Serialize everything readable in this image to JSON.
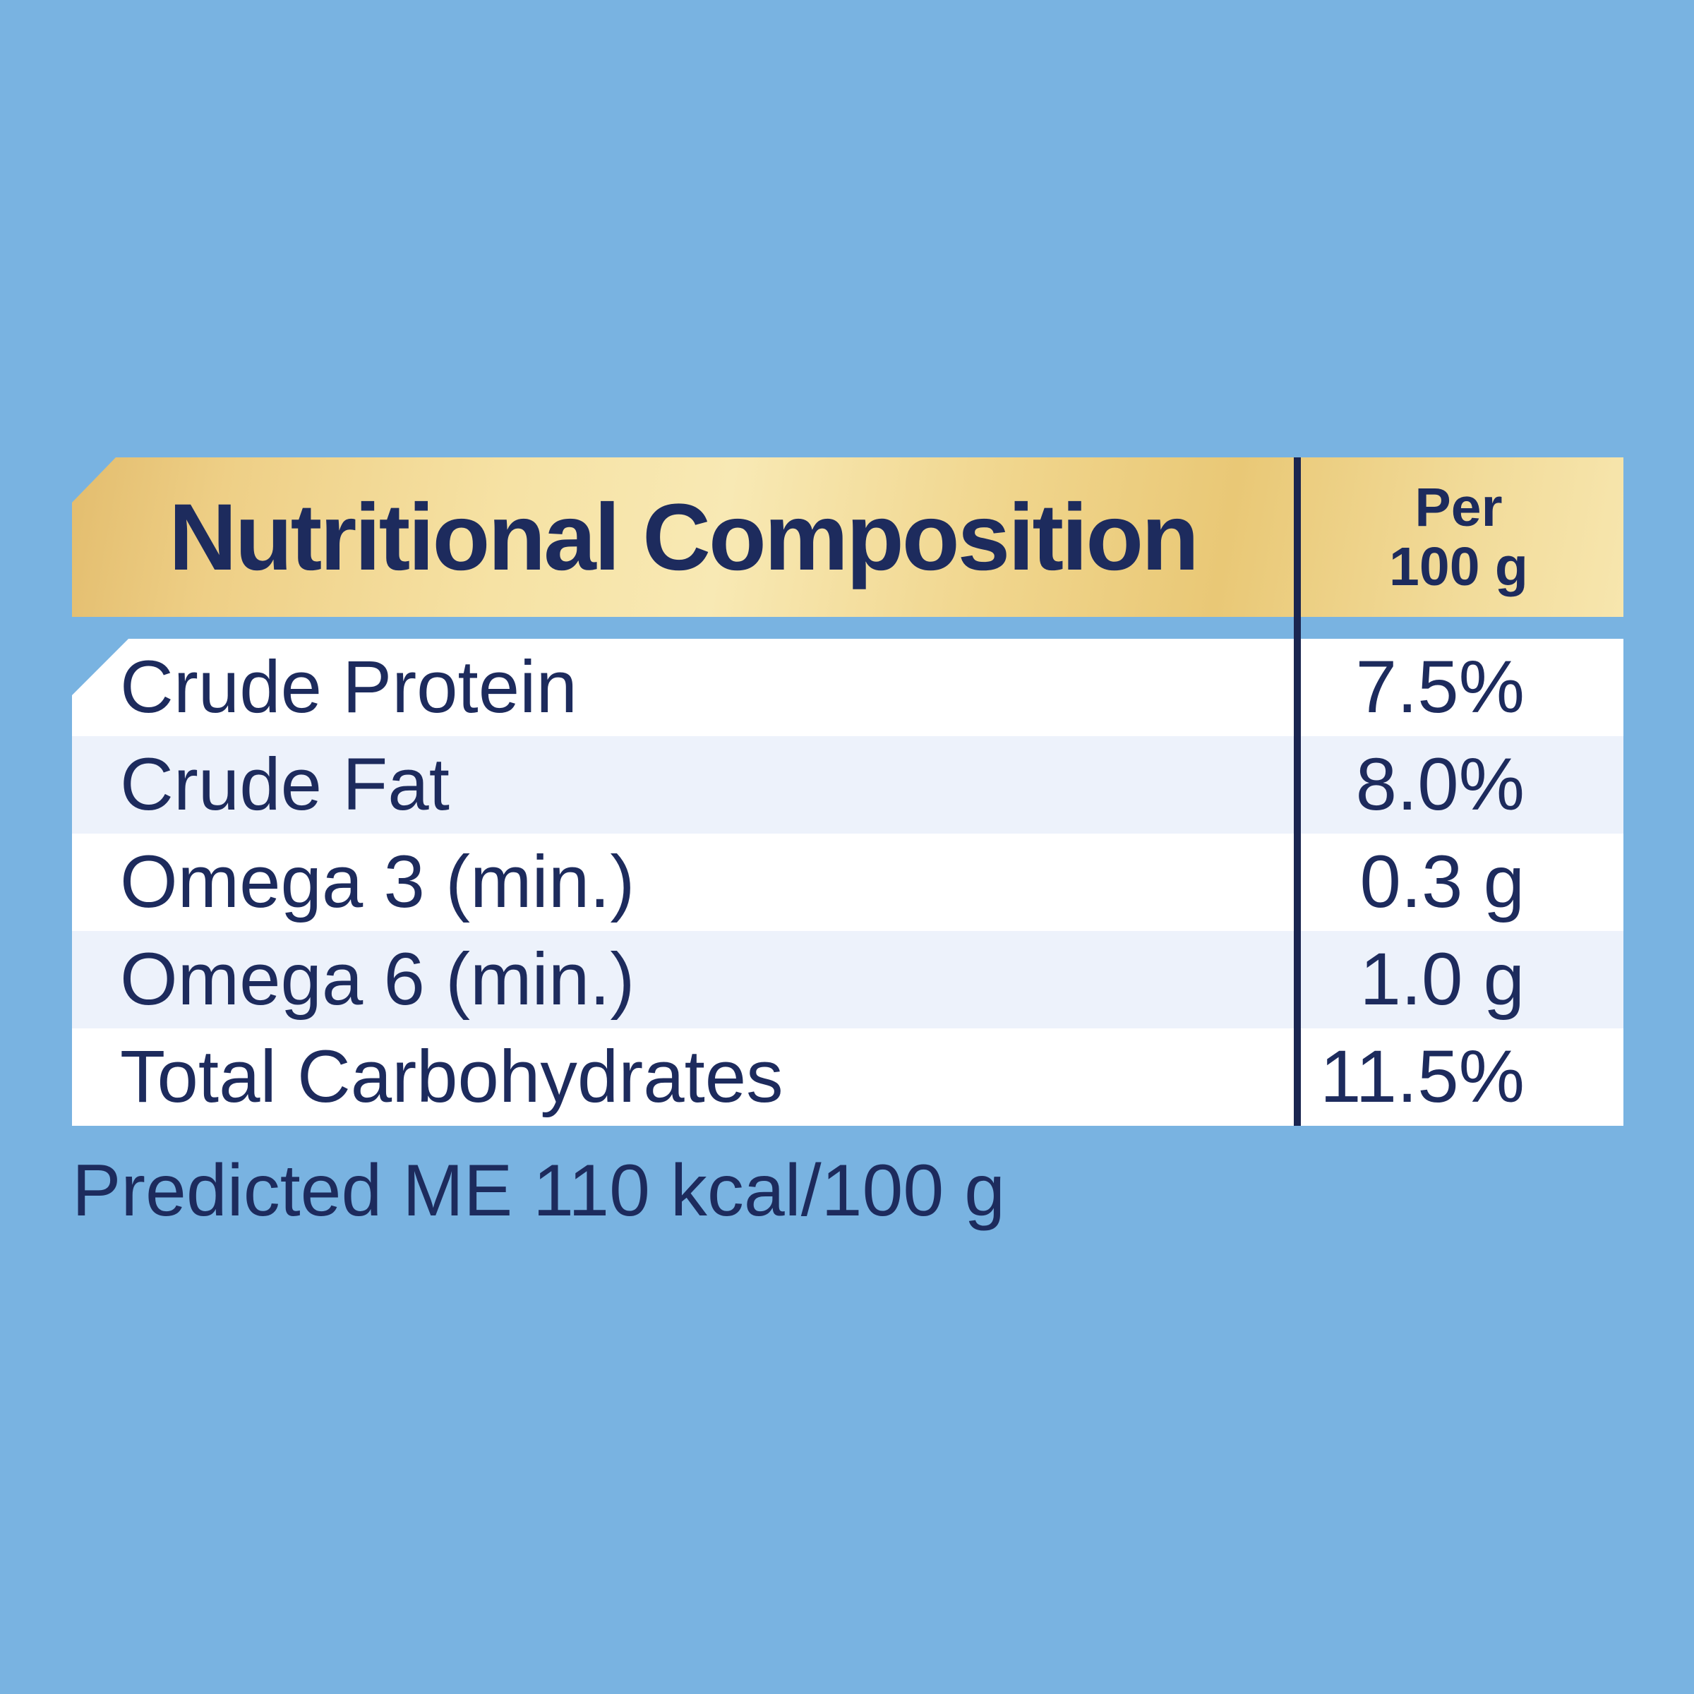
{
  "colors": {
    "background": "#79b3e1",
    "navy_text": "#1d2b5d",
    "divider": "#1a2550",
    "row_white": "#ffffff",
    "row_alt": "#edf2fb",
    "gold_light": "#f8e9b4",
    "gold_dark": "#e3bd6e"
  },
  "table": {
    "header": {
      "title": "Nutritional Composition",
      "unit_line1": "Per",
      "unit_line2": "100 g"
    },
    "rows": [
      {
        "label": "Crude Protein",
        "value": "7.5%"
      },
      {
        "label": "Crude Fat",
        "value": "8.0%"
      },
      {
        "label": "Omega 3 (min.)",
        "value": "0.3 g"
      },
      {
        "label": "Omega 6 (min.)",
        "value": "1.0 g"
      },
      {
        "label": "Total Carbohydrates",
        "value": "11.5%"
      }
    ]
  },
  "footnote": "Predicted ME 110 kcal/100 g"
}
